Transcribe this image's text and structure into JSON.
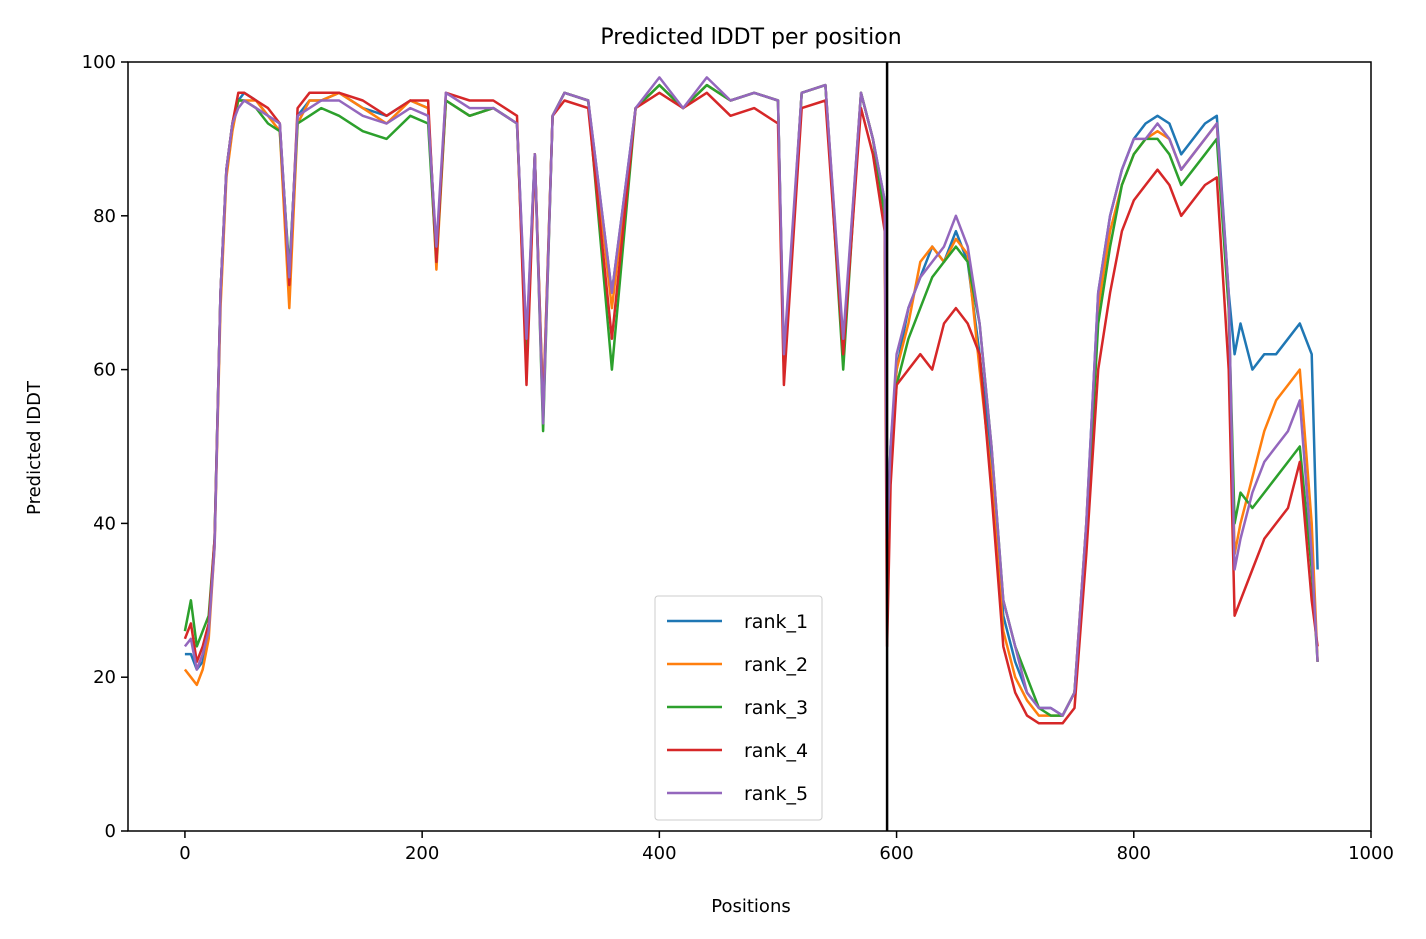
{
  "chart_data": {
    "type": "line",
    "title": "Predicted lDDT per position",
    "xlabel": "Positions",
    "ylabel": "Predicted lDDT",
    "xlim": [
      -48,
      1000
    ],
    "ylim": [
      0,
      100
    ],
    "xticks": [
      0,
      200,
      400,
      600,
      800,
      1000
    ],
    "yticks": [
      0,
      20,
      40,
      60,
      80,
      100
    ],
    "grid": false,
    "legend_position": "lower-center",
    "chain_break": 592,
    "series": [
      {
        "name": "rank_1",
        "color": "#1f77b4",
        "x": [
          0,
          5,
          10,
          15,
          20,
          25,
          30,
          35,
          40,
          45,
          50,
          60,
          70,
          80,
          88,
          95,
          105,
          115,
          130,
          150,
          170,
          190,
          205,
          212,
          220,
          240,
          260,
          280,
          288,
          295,
          302,
          310,
          320,
          340,
          360,
          380,
          400,
          420,
          440,
          460,
          480,
          500,
          505,
          520,
          540,
          555,
          570,
          580,
          590,
          592,
          595,
          600,
          610,
          620,
          630,
          640,
          650,
          660,
          670,
          680,
          690,
          700,
          710,
          720,
          730,
          740,
          750,
          760,
          770,
          780,
          790,
          800,
          810,
          820,
          830,
          840,
          850,
          860,
          870,
          880,
          885,
          890,
          900,
          910,
          920,
          930,
          940,
          950,
          955
        ],
        "y": [
          23,
          23,
          21,
          22,
          26,
          38,
          70,
          86,
          92,
          95,
          96,
          95,
          93,
          92,
          72,
          93,
          95,
          95,
          96,
          94,
          93,
          95,
          94,
          75,
          95,
          93,
          94,
          92,
          63,
          88,
          55,
          93,
          96,
          95,
          70,
          94,
          97,
          94,
          97,
          95,
          96,
          95,
          60,
          96,
          97,
          63,
          96,
          90,
          82,
          40,
          50,
          60,
          68,
          72,
          76,
          74,
          78,
          74,
          62,
          48,
          28,
          22,
          18,
          16,
          16,
          15,
          18,
          40,
          70,
          80,
          86,
          90,
          92,
          93,
          92,
          88,
          90,
          92,
          93,
          70,
          62,
          66,
          60,
          62,
          62,
          64,
          66,
          62,
          34
        ]
      },
      {
        "name": "rank_2",
        "color": "#ff7f0e",
        "x": [
          0,
          5,
          10,
          15,
          20,
          25,
          30,
          35,
          40,
          45,
          50,
          60,
          70,
          80,
          88,
          95,
          105,
          115,
          130,
          150,
          170,
          190,
          205,
          212,
          220,
          240,
          260,
          280,
          288,
          295,
          302,
          310,
          320,
          340,
          360,
          380,
          400,
          420,
          440,
          460,
          480,
          500,
          505,
          520,
          540,
          555,
          570,
          580,
          590,
          592,
          595,
          600,
          610,
          620,
          630,
          640,
          650,
          660,
          670,
          680,
          690,
          700,
          710,
          720,
          730,
          740,
          750,
          760,
          770,
          780,
          790,
          800,
          810,
          820,
          830,
          840,
          850,
          860,
          870,
          880,
          885,
          890,
          900,
          910,
          920,
          930,
          940,
          950,
          955
        ],
        "y": [
          21,
          20,
          19,
          21,
          25,
          37,
          68,
          85,
          91,
          95,
          95,
          95,
          93,
          91,
          68,
          92,
          95,
          95,
          96,
          94,
          92,
          95,
          94,
          73,
          95,
          93,
          94,
          92,
          60,
          88,
          55,
          93,
          96,
          95,
          68,
          94,
          97,
          94,
          97,
          95,
          96,
          95,
          60,
          96,
          97,
          63,
          96,
          90,
          80,
          38,
          48,
          60,
          66,
          74,
          76,
          74,
          77,
          75,
          60,
          46,
          26,
          20,
          17,
          15,
          15,
          15,
          18,
          40,
          68,
          78,
          84,
          88,
          90,
          91,
          90,
          86,
          88,
          90,
          92,
          68,
          36,
          40,
          46,
          52,
          56,
          58,
          60,
          40,
          22
        ]
      },
      {
        "name": "rank_3",
        "color": "#2ca02c",
        "x": [
          0,
          5,
          10,
          15,
          20,
          25,
          30,
          35,
          40,
          45,
          50,
          60,
          70,
          80,
          88,
          95,
          105,
          115,
          130,
          150,
          170,
          190,
          205,
          212,
          220,
          240,
          260,
          280,
          288,
          295,
          302,
          310,
          320,
          340,
          360,
          380,
          400,
          420,
          440,
          460,
          480,
          500,
          505,
          520,
          540,
          555,
          570,
          580,
          590,
          592,
          595,
          600,
          610,
          620,
          630,
          640,
          650,
          660,
          670,
          680,
          690,
          700,
          710,
          720,
          730,
          740,
          750,
          760,
          770,
          780,
          790,
          800,
          810,
          820,
          830,
          840,
          850,
          860,
          870,
          880,
          885,
          890,
          900,
          910,
          920,
          930,
          940,
          950,
          955
        ],
        "y": [
          26,
          30,
          24,
          26,
          28,
          38,
          70,
          86,
          92,
          95,
          95,
          94,
          92,
          91,
          73,
          92,
          93,
          94,
          93,
          91,
          90,
          93,
          92,
          74,
          95,
          93,
          94,
          92,
          62,
          88,
          52,
          93,
          96,
          95,
          60,
          94,
          97,
          94,
          97,
          95,
          96,
          95,
          60,
          96,
          97,
          60,
          96,
          90,
          80,
          38,
          48,
          58,
          64,
          68,
          72,
          74,
          76,
          74,
          66,
          50,
          30,
          24,
          20,
          16,
          15,
          15,
          18,
          38,
          66,
          76,
          84,
          88,
          90,
          90,
          88,
          84,
          86,
          88,
          90,
          68,
          40,
          44,
          42,
          44,
          46,
          48,
          50,
          34,
          22
        ]
      },
      {
        "name": "rank_4",
        "color": "#d62728",
        "x": [
          0,
          5,
          10,
          15,
          20,
          25,
          30,
          35,
          40,
          45,
          50,
          60,
          70,
          80,
          88,
          95,
          105,
          115,
          130,
          150,
          170,
          190,
          205,
          212,
          220,
          240,
          260,
          280,
          288,
          295,
          302,
          310,
          320,
          340,
          360,
          380,
          400,
          420,
          440,
          460,
          480,
          500,
          505,
          520,
          540,
          555,
          570,
          580,
          590,
          592,
          595,
          600,
          610,
          620,
          630,
          640,
          650,
          660,
          670,
          680,
          690,
          700,
          710,
          720,
          730,
          740,
          750,
          760,
          770,
          780,
          790,
          800,
          810,
          820,
          830,
          840,
          850,
          860,
          870,
          880,
          885,
          890,
          900,
          910,
          920,
          930,
          940,
          950,
          955
        ],
        "y": [
          25,
          27,
          22,
          24,
          27,
          38,
          70,
          86,
          92,
          96,
          96,
          95,
          94,
          92,
          71,
          94,
          96,
          96,
          96,
          95,
          93,
          95,
          95,
          74,
          96,
          95,
          95,
          93,
          58,
          88,
          54,
          93,
          95,
          94,
          64,
          94,
          96,
          94,
          96,
          93,
          94,
          92,
          58,
          94,
          95,
          62,
          94,
          88,
          78,
          24,
          45,
          58,
          60,
          62,
          60,
          66,
          68,
          66,
          62,
          44,
          24,
          18,
          15,
          14,
          14,
          14,
          16,
          36,
          60,
          70,
          78,
          82,
          84,
          86,
          84,
          80,
          82,
          84,
          85,
          60,
          28,
          30,
          34,
          38,
          40,
          42,
          48,
          30,
          24
        ]
      },
      {
        "name": "rank_5",
        "color": "#9467bd",
        "x": [
          0,
          5,
          10,
          15,
          20,
          25,
          30,
          35,
          40,
          45,
          50,
          60,
          70,
          80,
          88,
          95,
          105,
          115,
          130,
          150,
          170,
          190,
          205,
          212,
          220,
          240,
          260,
          280,
          288,
          295,
          302,
          310,
          320,
          340,
          360,
          380,
          400,
          420,
          440,
          460,
          480,
          500,
          505,
          520,
          540,
          555,
          570,
          580,
          590,
          592,
          595,
          600,
          610,
          620,
          630,
          640,
          650,
          660,
          670,
          680,
          690,
          700,
          710,
          720,
          730,
          740,
          750,
          760,
          770,
          780,
          790,
          800,
          810,
          820,
          830,
          840,
          850,
          860,
          870,
          880,
          885,
          890,
          900,
          910,
          920,
          930,
          940,
          950,
          955
        ],
        "y": [
          24,
          25,
          21,
          23,
          26,
          37,
          70,
          86,
          92,
          94,
          95,
          94,
          93,
          92,
          72,
          93,
          94,
          95,
          95,
          93,
          92,
          94,
          93,
          76,
          96,
          94,
          94,
          92,
          64,
          88,
          53,
          93,
          96,
          95,
          70,
          94,
          98,
          94,
          98,
          95,
          96,
          95,
          62,
          96,
          97,
          64,
          96,
          90,
          82,
          38,
          50,
          62,
          68,
          72,
          74,
          76,
          80,
          76,
          66,
          50,
          30,
          24,
          18,
          16,
          16,
          15,
          18,
          40,
          70,
          80,
          86,
          90,
          90,
          92,
          90,
          86,
          88,
          90,
          92,
          70,
          34,
          38,
          44,
          48,
          50,
          52,
          56,
          36,
          22
        ]
      }
    ]
  }
}
